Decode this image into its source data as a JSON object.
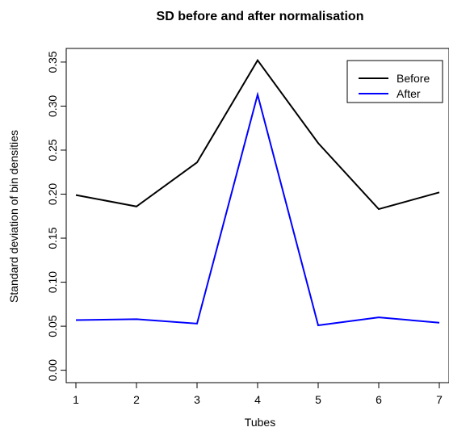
{
  "chart_data": {
    "type": "line",
    "title": "SD before and after normalisation",
    "xlabel": "Tubes",
    "ylabel": "Standard deviation of bin densities",
    "x": [
      1,
      2,
      3,
      4,
      5,
      6,
      7
    ],
    "xlim": [
      0.84,
      7.16
    ],
    "ylim": [
      -0.0141,
      0.3655
    ],
    "xticks": [
      "1",
      "2",
      "3",
      "4",
      "5",
      "6",
      "7"
    ],
    "yticks": [
      "0.00",
      "0.05",
      "0.10",
      "0.15",
      "0.20",
      "0.25",
      "0.30",
      "0.35"
    ],
    "yticks_values": [
      0.0,
      0.05,
      0.1,
      0.15,
      0.2,
      0.25,
      0.3,
      0.35
    ],
    "grid": false,
    "legend_position": "top-right",
    "series": [
      {
        "name": "Before",
        "color": "#000000",
        "values": [
          0.199,
          0.186,
          0.236,
          0.352,
          0.258,
          0.183,
          0.202
        ]
      },
      {
        "name": "After",
        "color": "#0000ff",
        "values": [
          0.057,
          0.058,
          0.053,
          0.313,
          0.051,
          0.06,
          0.054
        ]
      }
    ]
  }
}
